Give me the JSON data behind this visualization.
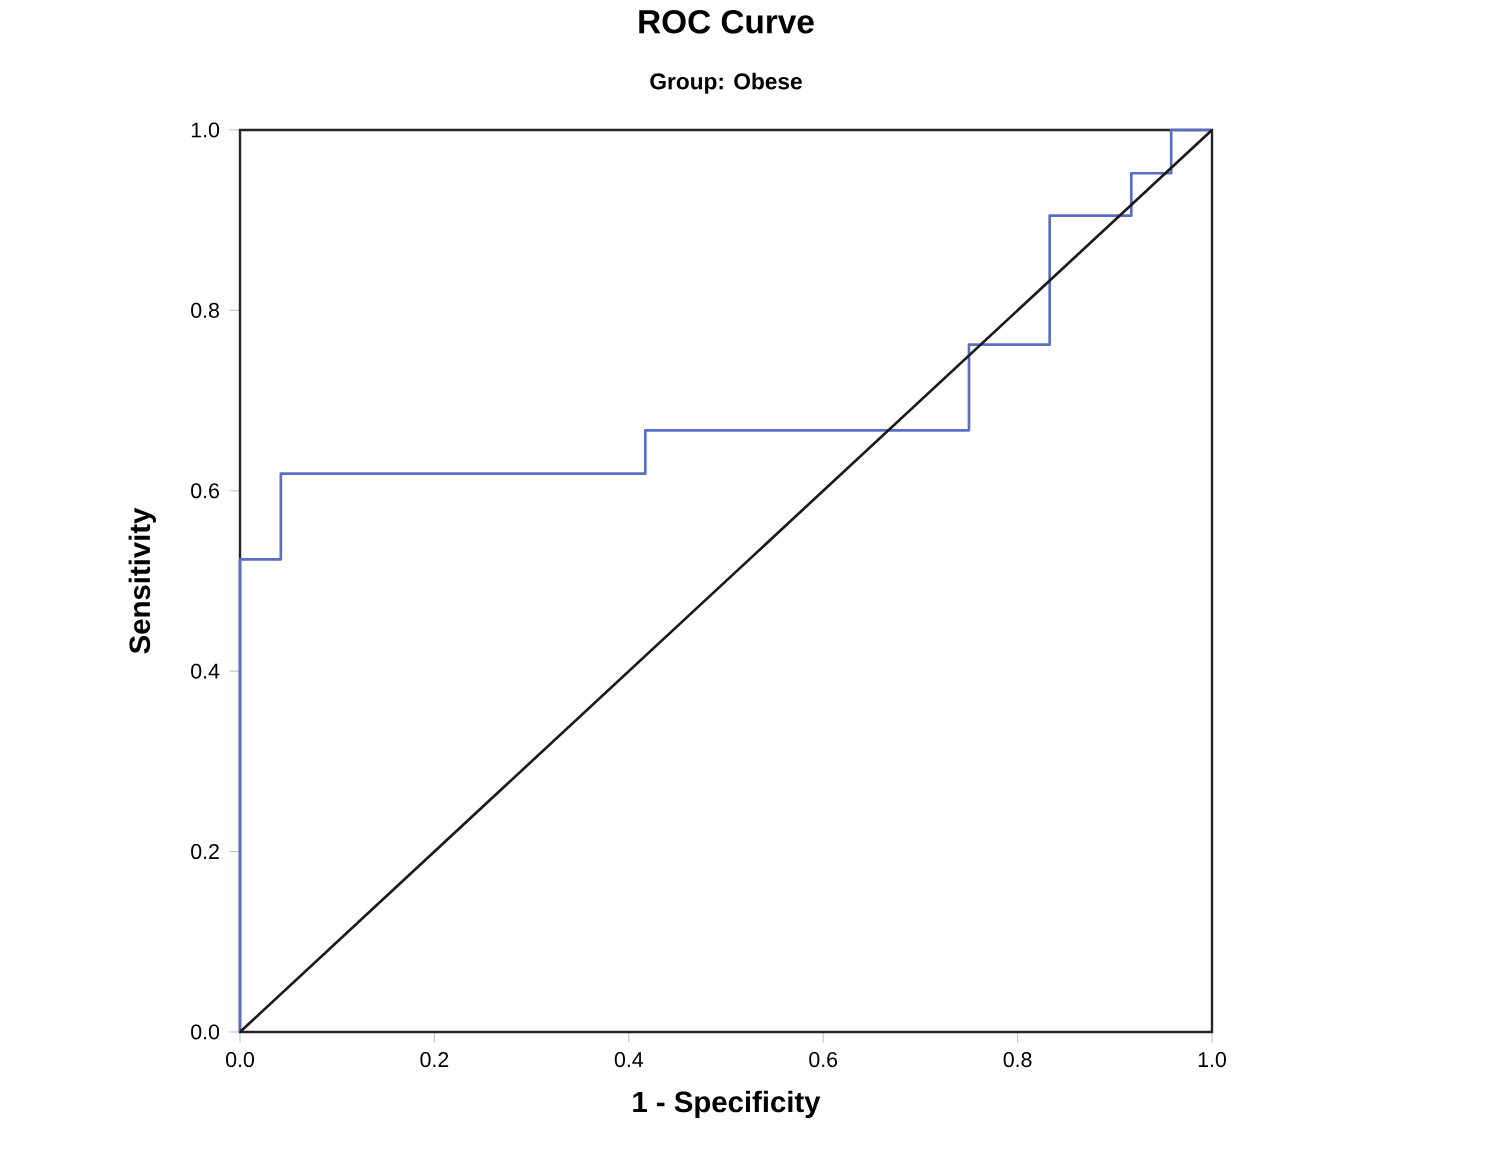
{
  "chart_data": {
    "type": "step",
    "title": "ROC Curve",
    "subtitle": "Group: Obese",
    "xlabel": "1 - Specificity",
    "ylabel": "Sensitivity",
    "xlim": [
      0,
      1
    ],
    "ylim": [
      0,
      1
    ],
    "xticks": [
      {
        "value": 0,
        "label": "0.0"
      },
      0.2,
      0.4,
      0.6,
      0.8,
      {
        "value": 1,
        "label": "1.0"
      }
    ],
    "yticks": [
      {
        "value": 0,
        "label": "0.0"
      },
      0.2,
      0.4,
      0.6,
      0.8,
      {
        "value": 1,
        "label": "1.0"
      }
    ],
    "grid": false,
    "legend": false,
    "marker": "none",
    "series": [
      {
        "color": "#5a6fc4",
        "x": [
          0,
          0,
          0.042,
          0.417,
          0.75,
          0.833,
          0.917,
          0.958,
          1.0
        ],
        "values": [
          0,
          0.524,
          0.619,
          0.667,
          0.762,
          0.905,
          0.952,
          1.0,
          1.0
        ]
      },
      {
        "type": "line",
        "color": "#1a1a1a",
        "x": [
          0,
          1
        ],
        "values": [
          0,
          1
        ]
      }
    ]
  }
}
